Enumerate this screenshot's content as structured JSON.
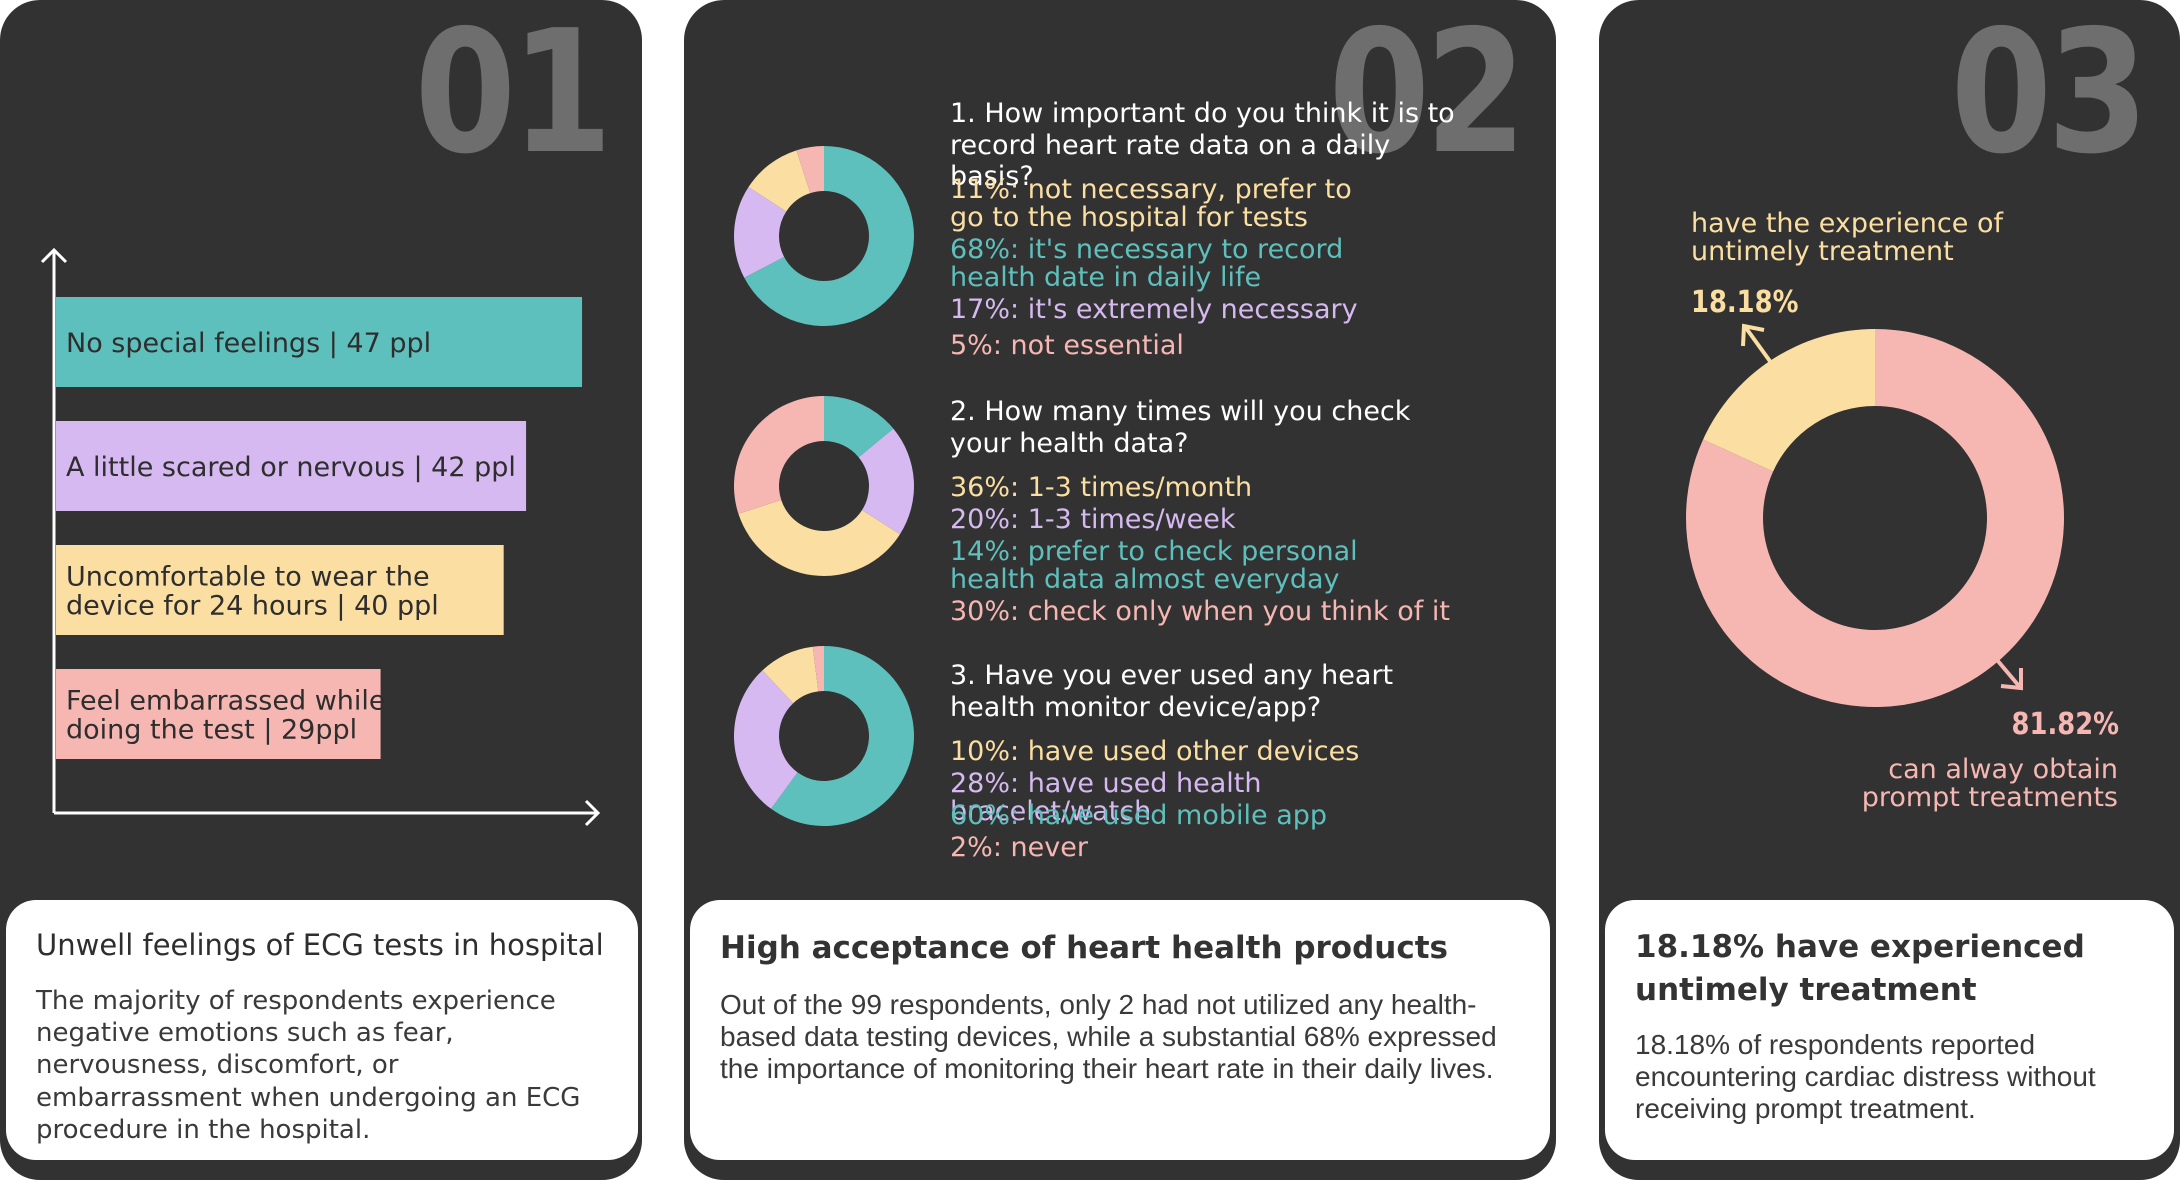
{
  "colors": {
    "teal": "#5ec0bd",
    "lavender": "#d5b9f0",
    "yellow": "#fbdea1",
    "pink": "#f6b7b3",
    "panel": "#323232",
    "number": "#6e6e6e"
  },
  "panel1": {
    "number": "01",
    "card_title": "Unwell feelings of ECG tests in hospital",
    "card_body": "The majority of respondents experience negative emotions such as fear, nervousness, discomfort, or embarrassment when undergoing an ECG procedure in the hospital."
  },
  "panel2": {
    "number": "02",
    "card_title": "High acceptance of heart health products",
    "card_body": "Out of the 99 respondents, only 2 had not utilized any health-based data testing devices, while a substantial 68% expressed the importance of monitoring their heart rate in their daily lives.",
    "questions": [
      {
        "question": "1. How important do you think it is to record heart rate data on a daily basis?",
        "options": [
          {
            "text": "11%: not necessary, prefer to go to the hospital for tests",
            "color": "#fbdea1"
          },
          {
            "text": "68%: it's necessary to record health date in daily life",
            "color": "#5ec0bd"
          },
          {
            "text": "17%: it's extremely necessary",
            "color": "#d5b9f0"
          },
          {
            "text": "5%: not essential",
            "color": "#f6b7b3"
          }
        ]
      },
      {
        "question": "2. How many times will you check your health data?",
        "options": [
          {
            "text": "36%: 1-3 times/month",
            "color": "#fbdea1"
          },
          {
            "text": "20%: 1-3 times/week",
            "color": "#d5b9f0"
          },
          {
            "text": "14%: prefer to check personal health data almost everyday",
            "color": "#5ec0bd"
          },
          {
            "text": "30%: check only when you think of it",
            "color": "#f6b7b3"
          }
        ]
      },
      {
        "question": "3. Have you ever used any heart health monitor device/app?",
        "options": [
          {
            "text": "10%: have used other devices",
            "color": "#fbdea1"
          },
          {
            "text": "28%: have used health bracelet/watch",
            "color": "#d5b9f0"
          },
          {
            "text": "60%: have used mobile app",
            "color": "#5ec0bd"
          },
          {
            "text": "2%: never",
            "color": "#f6b7b3"
          }
        ]
      }
    ]
  },
  "panel3": {
    "number": "03",
    "label_untimely_line1": "have the experience of",
    "label_untimely_line2": "untimely treatment",
    "pct_untimely": "18.18%",
    "pct_prompt": "81.82%",
    "label_prompt_line1": "can alway obtain",
    "label_prompt_line2": "prompt treatments",
    "card_title_line1": "18.18% have experienced",
    "card_title_line2": "untimely treatment",
    "card_body": "18.18% of respondents reported encountering cardiac distress without receiving prompt treatment."
  },
  "chart_data": [
    {
      "type": "bar",
      "orientation": "horizontal",
      "categories": [
        [
          "No special feelings | 47 ppl"
        ],
        [
          "A little scared or nervous | 42 ppl"
        ],
        [
          "Uncomfortable to wear the",
          "device for 24 hours | 40 ppl"
        ],
        [
          "Feel embarrassed while",
          "doing the test | 29ppl"
        ]
      ],
      "values": [
        47,
        42,
        40,
        29
      ],
      "colors": [
        "#5ec0bd",
        "#d5b9f0",
        "#fbdea1",
        "#f6b7b3"
      ],
      "xlim": [
        0,
        52
      ]
    },
    {
      "type": "pie",
      "donut": true,
      "labels": [
        "68%",
        "17%",
        "11%",
        "5%"
      ],
      "values": [
        68,
        17,
        11,
        5
      ],
      "colors": [
        "#5ec0bd",
        "#d5b9f0",
        "#fbdea1",
        "#f6b7b3"
      ]
    },
    {
      "type": "pie",
      "donut": true,
      "labels": [
        "14%",
        "20%",
        "36%",
        "30%"
      ],
      "values": [
        14,
        20,
        36,
        30
      ],
      "colors": [
        "#5ec0bd",
        "#d5b9f0",
        "#fbdea1",
        "#f6b7b3"
      ]
    },
    {
      "type": "pie",
      "donut": true,
      "labels": [
        "60%",
        "28%",
        "10%",
        "2%"
      ],
      "values": [
        60,
        28,
        10,
        2
      ],
      "colors": [
        "#5ec0bd",
        "#d5b9f0",
        "#fbdea1",
        "#f6b7b3"
      ]
    },
    {
      "type": "pie",
      "donut": true,
      "labels": [
        "81.82%",
        "18.18%"
      ],
      "values": [
        81.82,
        18.18
      ],
      "colors": [
        "#f6b7b3",
        "#fbdea1"
      ]
    }
  ]
}
